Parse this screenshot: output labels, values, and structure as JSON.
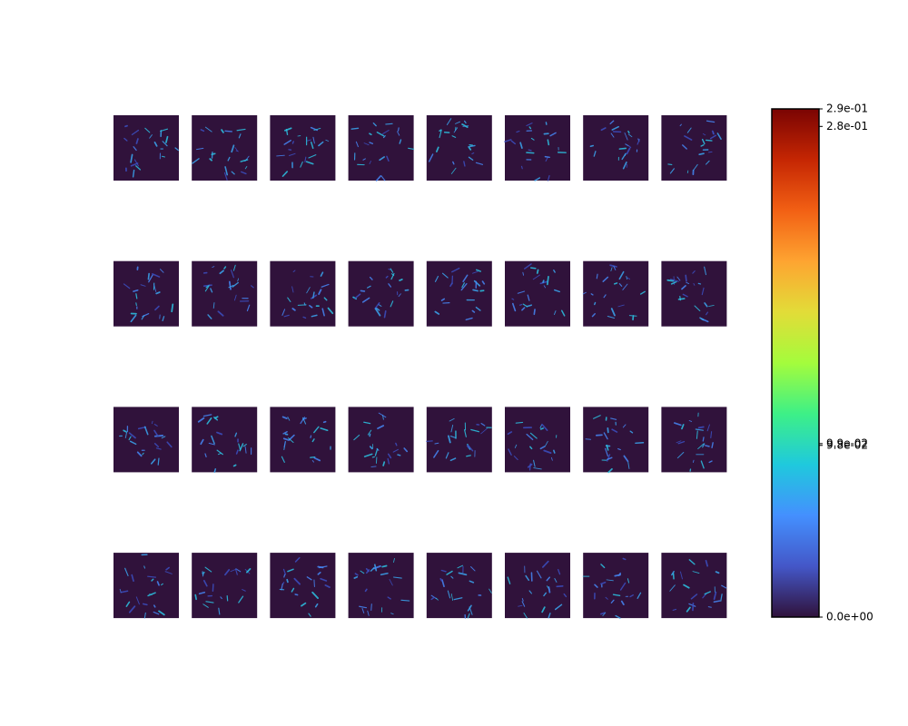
{
  "chart_data": {
    "type": "heatmap-grid",
    "rows": 4,
    "columns": 8,
    "cmap": "turbo",
    "colorbar": {
      "clim": [
        0,
        0.29
      ],
      "ticks": [
        {
          "value": 0,
          "label": "0.0e+00"
        },
        {
          "value": 0.098,
          "label": "9.8e-02"
        },
        {
          "value": 0.099,
          "label": "9.9e-02"
        },
        {
          "value": 0.28,
          "label": "2.8e-01"
        },
        {
          "value": 0.29,
          "label": "2.9e-01"
        }
      ]
    }
  }
}
